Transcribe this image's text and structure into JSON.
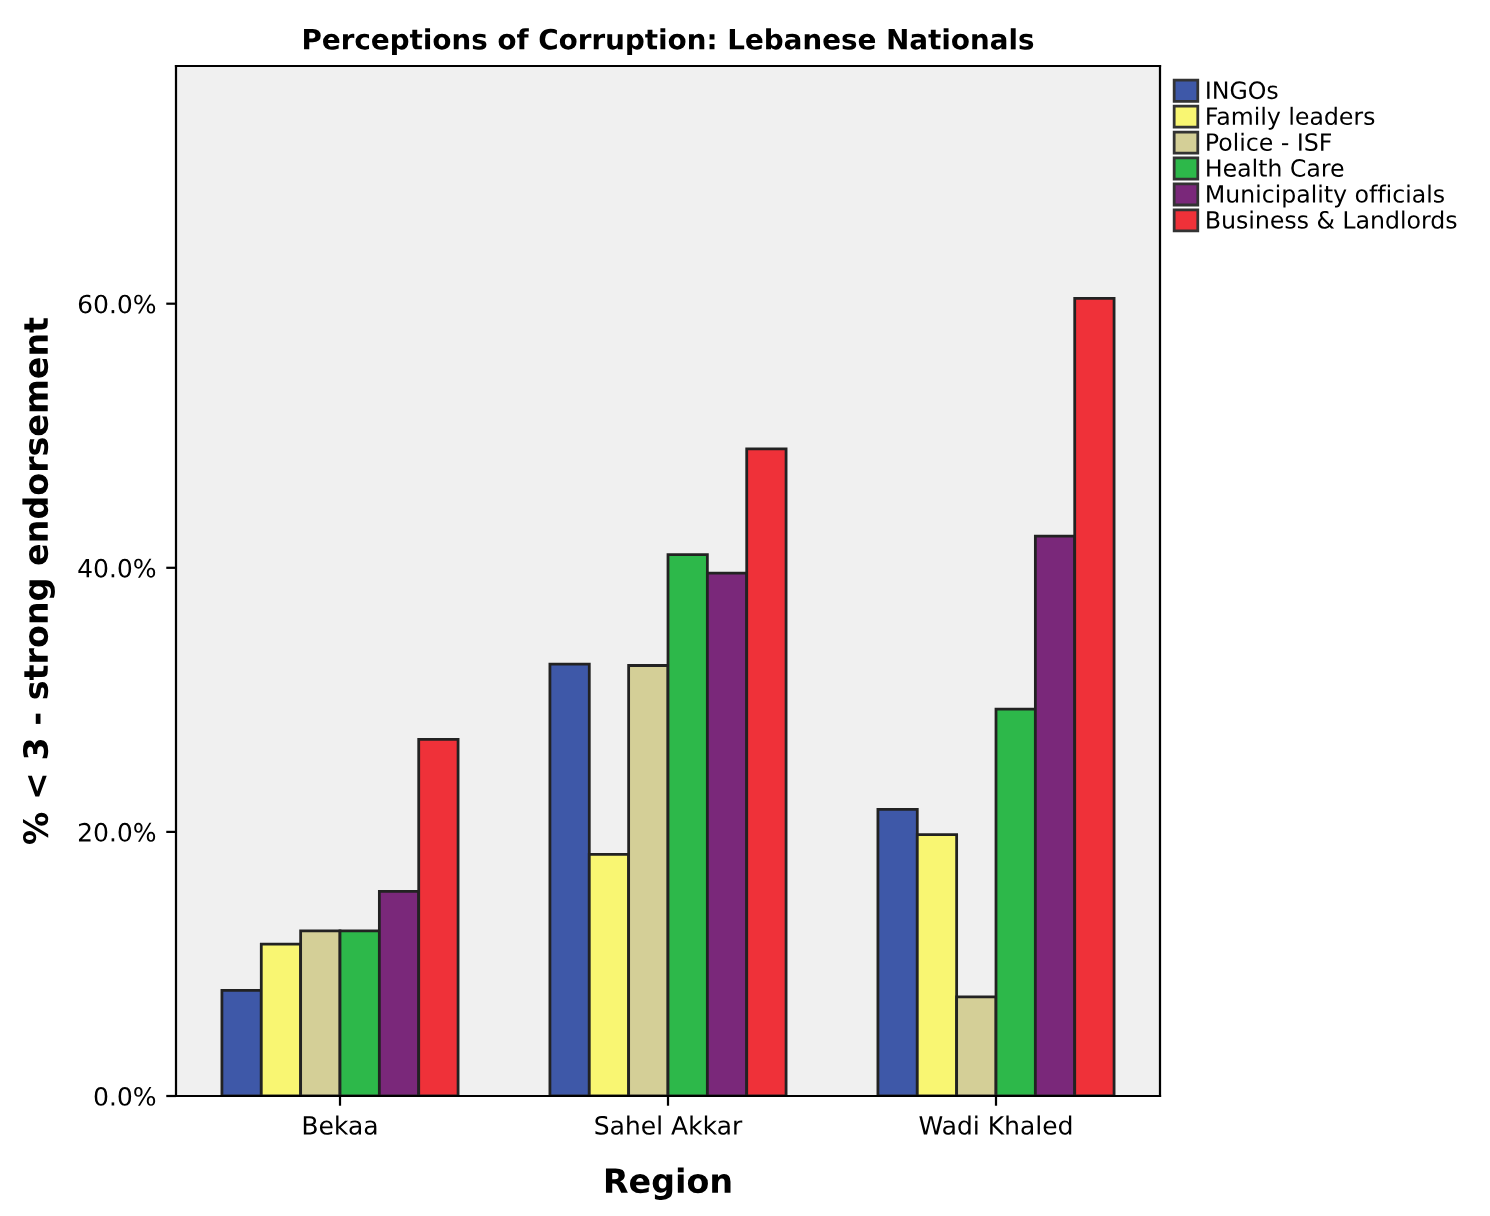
{
  "chart_data": {
    "type": "bar",
    "title": "Perceptions of Corruption: Lebanese Nationals",
    "xlabel": "Region",
    "ylabel": "% < 3 - strong endorsement",
    "categories": [
      "Bekaa",
      "Sahel Akkar",
      "Wadi Khaled"
    ],
    "series": [
      {
        "name": "INGOs",
        "color": "#3e58a8",
        "values": [
          8.0,
          32.7,
          21.7
        ]
      },
      {
        "name": "Family leaders",
        "color": "#f9f672",
        "values": [
          11.5,
          18.3,
          19.8
        ]
      },
      {
        "name": "Police - ISF",
        "color": "#d4cf97",
        "values": [
          12.5,
          32.6,
          7.5
        ]
      },
      {
        "name": "Health Care",
        "color": "#2db84a",
        "values": [
          12.5,
          41.0,
          29.3
        ]
      },
      {
        "name": "Municipality officials",
        "color": "#7a287a",
        "values": [
          15.5,
          39.6,
          42.4
        ]
      },
      {
        "name": "Business & Landlords",
        "color": "#ef3139",
        "values": [
          27.0,
          49.0,
          60.4
        ]
      }
    ],
    "ylim": [
      0,
      78
    ],
    "yticks": [
      {
        "value": 0,
        "label": "0.0%"
      },
      {
        "value": 20,
        "label": "20.0%"
      },
      {
        "value": 40,
        "label": "40.0%"
      },
      {
        "value": 60,
        "label": "60.0%"
      }
    ],
    "grid": false,
    "legend": "top right"
  }
}
